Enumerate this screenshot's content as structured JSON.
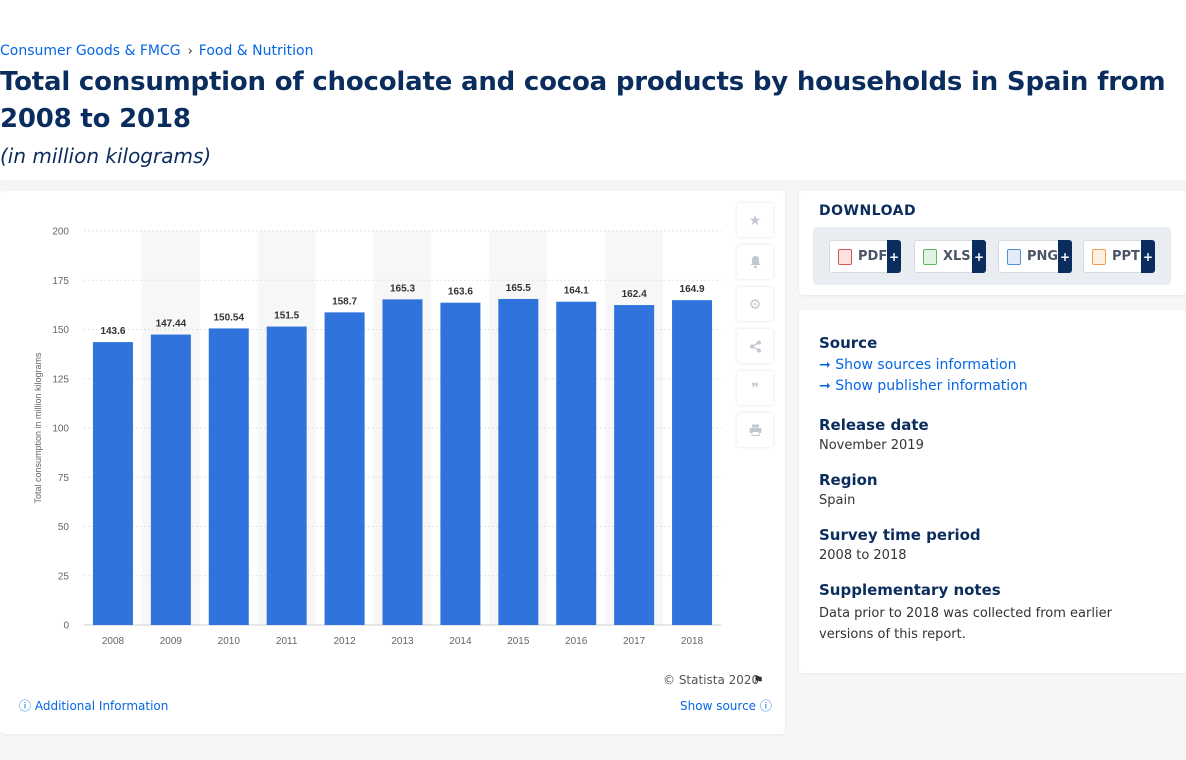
{
  "breadcrumb": {
    "item1": "Consumer Goods & FMCG",
    "separator": "›",
    "item2": "Food & Nutrition"
  },
  "page": {
    "title": "Total consumption of chocolate and cocoa products by households in Spain from 2008 to 2018",
    "subtitle": "(in million kilograms)"
  },
  "chart_data": {
    "type": "bar",
    "categories": [
      "2008",
      "2009",
      "2010",
      "2011",
      "2012",
      "2013",
      "2014",
      "2015",
      "2016",
      "2017",
      "2018"
    ],
    "values": [
      143.6,
      147.44,
      150.54,
      151.5,
      158.7,
      165.3,
      163.6,
      165.5,
      164.1,
      162.4,
      164.9
    ],
    "value_labels": [
      "143.6",
      "147.44",
      "150.54",
      "151.5",
      "158.7",
      "165.3",
      "163.6",
      "165.5",
      "164.1",
      "162.4",
      "164.9"
    ],
    "ylabel": "Total consumption in million kilograms",
    "ylim": [
      0,
      200
    ],
    "yticks": [
      0,
      25,
      50,
      75,
      100,
      125,
      150,
      175,
      200
    ],
    "grid": true,
    "bar_color": "#3073dc",
    "alt_band_color": "#f7f7f7"
  },
  "chart_footer": {
    "copyright": "© Statista 2020",
    "additional_info": "Additional Information",
    "show_source": "Show source"
  },
  "tools": [
    "star-icon",
    "bell-icon",
    "gear-icon",
    "share-icon",
    "quote-icon",
    "print-icon"
  ],
  "download": {
    "title": "DOWNLOAD",
    "buttons": [
      {
        "label": "PDF",
        "plus": "+",
        "color": "#d9534f"
      },
      {
        "label": "XLS",
        "plus": "+",
        "color": "#5cb85c"
      },
      {
        "label": "PNG",
        "plus": "+",
        "color": "#4a90d9"
      },
      {
        "label": "PPT",
        "plus": "+",
        "color": "#f0a04b"
      }
    ]
  },
  "meta": {
    "source_h": "Source",
    "show_sources": "Show sources information",
    "show_publisher": "Show publisher information",
    "release_h": "Release date",
    "release_v": "November 2019",
    "region_h": "Region",
    "region_v": "Spain",
    "survey_h": "Survey time period",
    "survey_v": "2008 to 2018",
    "notes_h": "Supplementary notes",
    "notes_v": "Data prior to 2018 was collected from earlier versions of this report."
  }
}
